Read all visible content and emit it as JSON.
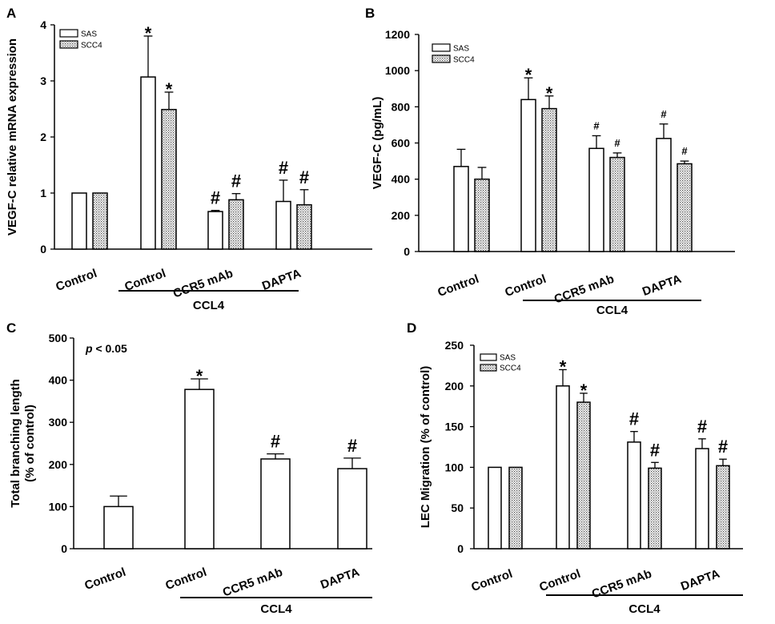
{
  "chart_data": [
    {
      "panel": "A",
      "type": "bar",
      "ylabel": "VEGF-C relative mRNA expression",
      "ylim": [
        0,
        4
      ],
      "yticks": [
        0,
        1,
        2,
        3,
        4
      ],
      "categories": [
        "Control",
        "Control",
        "CCR5 mAb",
        "DAPTA"
      ],
      "bracket_label": "CCL4",
      "legend_position": "top-left",
      "series": [
        {
          "name": "SAS",
          "pattern": "open",
          "values": [
            1.0,
            3.07,
            0.67,
            0.85
          ],
          "errors": [
            0,
            0.73,
            0.02,
            0.38
          ],
          "marks": [
            "",
            "*",
            "#",
            "#"
          ]
        },
        {
          "name": "SCC4",
          "pattern": "dotted",
          "values": [
            1.0,
            2.49,
            0.88,
            0.79
          ],
          "errors": [
            0,
            0.31,
            0.11,
            0.27
          ],
          "marks": [
            "",
            "*",
            "#",
            "#"
          ]
        }
      ]
    },
    {
      "panel": "B",
      "type": "bar",
      "ylabel": "VEGF-C (pg/mL)",
      "ylim": [
        0,
        1200
      ],
      "yticks": [
        0,
        200,
        400,
        600,
        800,
        1000,
        1200
      ],
      "categories": [
        "Control",
        "Control",
        "CCR5 mAb",
        "DAPTA"
      ],
      "bracket_label": "CCL4",
      "legend_position": "top-left",
      "series": [
        {
          "name": "SAS",
          "pattern": "open",
          "values": [
            470,
            840,
            570,
            625
          ],
          "errors": [
            95,
            120,
            70,
            80
          ],
          "marks": [
            "",
            "*",
            "#",
            "#"
          ]
        },
        {
          "name": "SCC4",
          "pattern": "dotted",
          "values": [
            400,
            790,
            520,
            485
          ],
          "errors": [
            65,
            70,
            25,
            15
          ],
          "marks": [
            "",
            "*",
            "#",
            "#"
          ]
        }
      ]
    },
    {
      "panel": "C",
      "type": "bar",
      "ylabel_lines": [
        "Total branching length",
        "(% of control)"
      ],
      "ylim": [
        0,
        500
      ],
      "yticks": [
        0,
        100,
        200,
        300,
        400,
        500
      ],
      "categories": [
        "Control",
        "Control",
        "CCR5 mAb",
        "DAPTA"
      ],
      "bracket_label": "CCL4",
      "annotation": {
        "italic": "p",
        "rest": " < 0.05"
      },
      "series": [
        {
          "name": "",
          "pattern": "open",
          "values": [
            100,
            378,
            213,
            190
          ],
          "errors": [
            25,
            25,
            12,
            25
          ],
          "marks": [
            "",
            "*",
            "#",
            "#"
          ]
        }
      ]
    },
    {
      "panel": "D",
      "type": "bar",
      "ylabel": "LEC Migration (% of control)",
      "ylim": [
        0,
        250
      ],
      "yticks": [
        0,
        50,
        100,
        150,
        200,
        250
      ],
      "categories": [
        "Control",
        "Control",
        "CCR5 mAb",
        "DAPTA"
      ],
      "bracket_label": "CCL4",
      "legend_position": "top-left",
      "series": [
        {
          "name": "SAS",
          "pattern": "open",
          "values": [
            100,
            200,
            131,
            123
          ],
          "errors": [
            0,
            20,
            13,
            12
          ],
          "marks": [
            "",
            "*",
            "#",
            "#"
          ]
        },
        {
          "name": "SCC4",
          "pattern": "dotted",
          "values": [
            100,
            180,
            99,
            102
          ],
          "errors": [
            0,
            11,
            7,
            8
          ],
          "marks": [
            "",
            "*",
            "#",
            "#"
          ]
        }
      ]
    }
  ]
}
